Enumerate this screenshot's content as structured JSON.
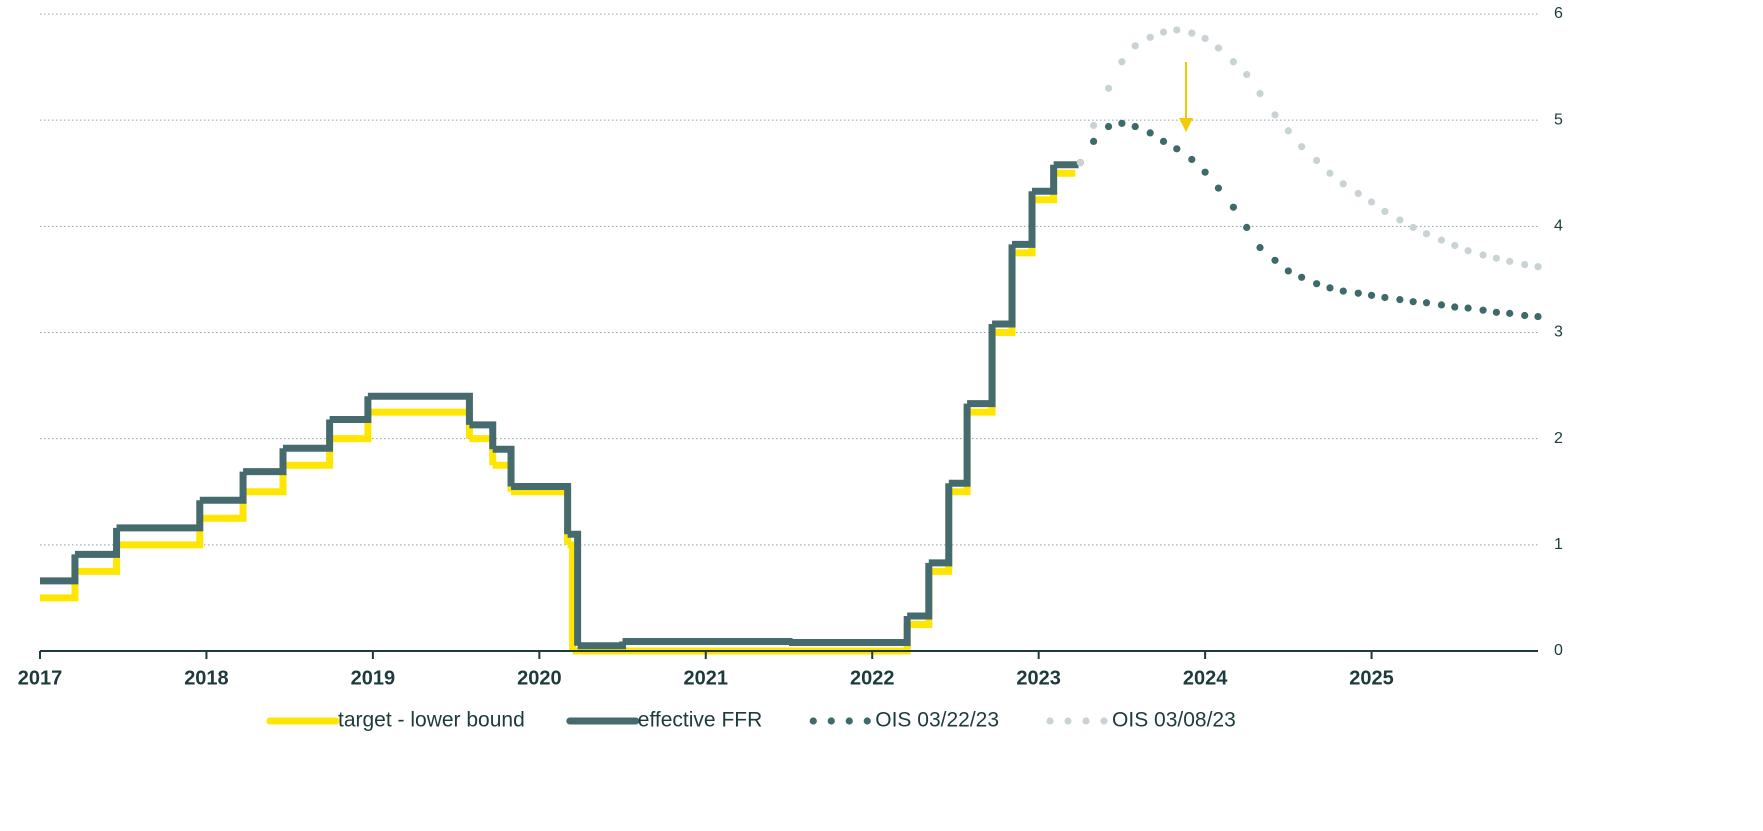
{
  "chart_data": {
    "type": "line",
    "xlim": [
      2017,
      2026
    ],
    "xticks": [
      2017,
      2018,
      2019,
      2020,
      2021,
      2022,
      2023,
      2024,
      2025
    ],
    "ylim": [
      0,
      6
    ],
    "yticks": [
      0,
      1,
      2,
      3,
      4,
      5,
      6
    ],
    "y_axis_side": "right",
    "grid": true,
    "legend": "bottom",
    "series": [
      {
        "name": "target - lower bound",
        "color": "#ffe600",
        "style": "step",
        "x": [
          2017.0,
          2017.21,
          2017.46,
          2017.96,
          2018.22,
          2018.46,
          2018.74,
          2018.97,
          2019.58,
          2019.72,
          2019.83,
          2020.17,
          2020.2,
          2022.21,
          2022.34,
          2022.46,
          2022.57,
          2022.72,
          2022.84,
          2022.96,
          2023.09,
          2023.22
        ],
        "values": [
          0.5,
          0.75,
          1.0,
          1.25,
          1.5,
          1.75,
          2.0,
          2.25,
          2.0,
          1.75,
          1.5,
          1.0,
          0.0,
          0.25,
          0.75,
          1.5,
          2.25,
          3.0,
          3.75,
          4.25,
          4.5,
          4.5
        ]
      },
      {
        "name": "effective FFR",
        "color": "#466b6e",
        "style": "step",
        "x": [
          2017.0,
          2017.21,
          2017.46,
          2017.96,
          2018.22,
          2018.46,
          2018.74,
          2018.97,
          2019.58,
          2019.72,
          2019.83,
          2020.17,
          2020.23,
          2020.5,
          2021.5,
          2022.21,
          2022.34,
          2022.46,
          2022.57,
          2022.72,
          2022.84,
          2022.96,
          2023.09,
          2023.24
        ],
        "values": [
          0.66,
          0.91,
          1.16,
          1.42,
          1.69,
          1.91,
          2.18,
          2.4,
          2.13,
          1.9,
          1.55,
          1.1,
          0.05,
          0.09,
          0.08,
          0.33,
          0.83,
          1.58,
          2.33,
          3.08,
          3.83,
          4.33,
          4.58,
          4.58
        ]
      },
      {
        "name": "OIS 03/22/23",
        "color": "#3f6a6b",
        "style": "dotted",
        "x": [
          2023.25,
          2023.33,
          2023.42,
          2023.5,
          2023.58,
          2023.67,
          2023.75,
          2023.83,
          2023.92,
          2024.0,
          2024.08,
          2024.17,
          2024.25,
          2024.33,
          2024.42,
          2024.5,
          2024.58,
          2024.67,
          2024.75,
          2024.83,
          2024.92,
          2025.0,
          2025.08,
          2025.17,
          2025.25,
          2025.33,
          2025.42,
          2025.5,
          2025.58,
          2025.67,
          2025.75,
          2025.83,
          2025.92,
          2026.0
        ],
        "values": [
          4.6,
          4.8,
          4.94,
          4.97,
          4.94,
          4.88,
          4.8,
          4.73,
          4.63,
          4.51,
          4.36,
          4.18,
          3.99,
          3.8,
          3.68,
          3.58,
          3.52,
          3.46,
          3.42,
          3.39,
          3.37,
          3.35,
          3.33,
          3.31,
          3.29,
          3.28,
          3.26,
          3.24,
          3.23,
          3.21,
          3.19,
          3.18,
          3.16,
          3.15
        ]
      },
      {
        "name": "OIS 03/08/23",
        "color": "#c9d3d6",
        "style": "dotted",
        "x": [
          2023.25,
          2023.33,
          2023.42,
          2023.5,
          2023.58,
          2023.67,
          2023.75,
          2023.83,
          2023.92,
          2024.0,
          2024.08,
          2024.17,
          2024.25,
          2024.33,
          2024.42,
          2024.5,
          2024.58,
          2024.67,
          2024.75,
          2024.83,
          2024.92,
          2025.0,
          2025.08,
          2025.17,
          2025.25,
          2025.33,
          2025.42,
          2025.5,
          2025.58,
          2025.67,
          2025.75,
          2025.83,
          2025.92,
          2026.0
        ],
        "values": [
          4.6,
          4.95,
          5.3,
          5.55,
          5.7,
          5.78,
          5.83,
          5.85,
          5.82,
          5.77,
          5.68,
          5.55,
          5.43,
          5.25,
          5.05,
          4.9,
          4.75,
          4.62,
          4.5,
          4.4,
          4.31,
          4.23,
          4.14,
          4.06,
          3.99,
          3.93,
          3.87,
          3.82,
          3.77,
          3.73,
          3.7,
          3.67,
          3.64,
          3.62
        ]
      }
    ]
  }
}
